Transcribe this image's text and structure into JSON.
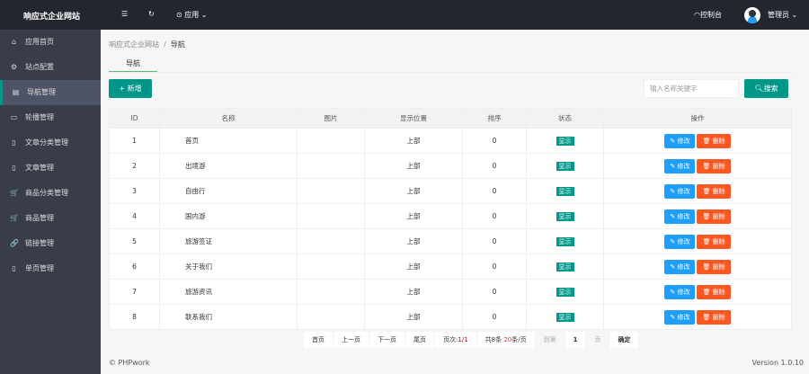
{
  "header": {
    "title": "响应式企业网站",
    "apps": "应用",
    "console": "控制台",
    "user": "管理员"
  },
  "sidebar": {
    "items": [
      {
        "label": "应用首页",
        "icon": "⌂"
      },
      {
        "label": "站点配置",
        "icon": "⚙"
      },
      {
        "label": "导航管理",
        "icon": "▤"
      },
      {
        "label": "轮播管理",
        "icon": "▭"
      },
      {
        "label": "文章分类管理",
        "icon": "▯"
      },
      {
        "label": "文章管理",
        "icon": "▯"
      },
      {
        "label": "商品分类管理",
        "icon": "🛒"
      },
      {
        "label": "商品管理",
        "icon": "🛒"
      },
      {
        "label": "链接管理",
        "icon": "🔗"
      },
      {
        "label": "单页管理",
        "icon": "▯"
      }
    ],
    "active": 2
  },
  "breadcrumb": {
    "root": "响应式企业网站",
    "sep": "/",
    "current": "导航"
  },
  "tab": "导航",
  "toolbar": {
    "add": "+ 新增",
    "search_placeholder": "输入名称关键字",
    "search": "搜索"
  },
  "table": {
    "headers": [
      "ID",
      "名称",
      "图片",
      "显示位置",
      "排序",
      "状态",
      "操作"
    ],
    "rows": [
      [
        "1",
        "首页",
        "",
        "上部",
        "0",
        "显示"
      ],
      [
        "2",
        "出境游",
        "",
        "上部",
        "0",
        "显示"
      ],
      [
        "3",
        "自由行",
        "",
        "上部",
        "0",
        "显示"
      ],
      [
        "4",
        "国内游",
        "",
        "上部",
        "0",
        "显示"
      ],
      [
        "5",
        "旅游签证",
        "",
        "上部",
        "0",
        "显示"
      ],
      [
        "6",
        "关于我们",
        "",
        "上部",
        "0",
        "显示"
      ],
      [
        "7",
        "旅游资讯",
        "",
        "上部",
        "0",
        "显示"
      ],
      [
        "8",
        "联系我们",
        "",
        "上部",
        "0",
        "显示"
      ]
    ],
    "edit": "修改",
    "delete": "删除"
  },
  "pagination": {
    "first": "首页",
    "prev": "上一页",
    "next": "下一页",
    "last": "尾页",
    "page_label": "页次:",
    "page": "1/1",
    "total": "共8条",
    "per_page": "20",
    "per_page_suffix": "条/页",
    "goto": "到第",
    "goto_value": "1",
    "page_unit": "页",
    "confirm": "确定"
  },
  "footer": {
    "copyright": "© PHPwork",
    "version": "Version 1.0.10"
  },
  "colors": {
    "primary": "#009688",
    "edit": "#1e9fff",
    "delete": "#ff5722",
    "topbar": "#23262e",
    "sidebar": "#393d49"
  }
}
